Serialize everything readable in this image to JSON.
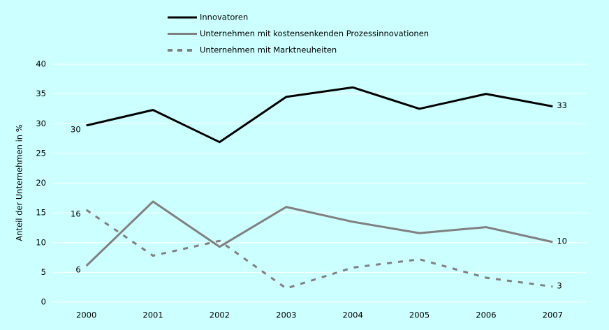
{
  "chart_data": {
    "type": "line",
    "y_label": "Anteil der Unternehmen in %",
    "categories": [
      "2000",
      "2001",
      "2002",
      "2003",
      "2004",
      "2005",
      "2006",
      "2007"
    ],
    "series": [
      {
        "name": "Innovatoren",
        "color": "#000000",
        "dash": false,
        "values": [
          29.7,
          32.3,
          26.9,
          34.5,
          36.1,
          32.5,
          35.0,
          32.9
        ],
        "value_labels": [
          "30",
          null,
          null,
          null,
          null,
          null,
          null,
          "33"
        ]
      },
      {
        "name": "Unternehmen mit kostensenkenden Prozessinnovationen",
        "color": "#808080",
        "dash": false,
        "values": [
          6.1,
          16.9,
          9.3,
          16.0,
          13.5,
          11.6,
          12.6,
          10.1
        ],
        "value_labels": [
          "6",
          null,
          null,
          null,
          null,
          null,
          null,
          "10"
        ]
      },
      {
        "name": "Unternehmen mit Marktneuheiten",
        "color": "#808080",
        "dash": true,
        "values": [
          15.5,
          7.8,
          10.3,
          2.3,
          5.8,
          7.2,
          4.1,
          2.6
        ],
        "value_labels": [
          "16",
          null,
          null,
          null,
          null,
          null,
          null,
          "3"
        ]
      }
    ],
    "ylim": [
      0,
      40
    ],
    "yticks": [
      0,
      5,
      10,
      15,
      20,
      25,
      30,
      35,
      40
    ],
    "grid": true,
    "legend": "top"
  }
}
